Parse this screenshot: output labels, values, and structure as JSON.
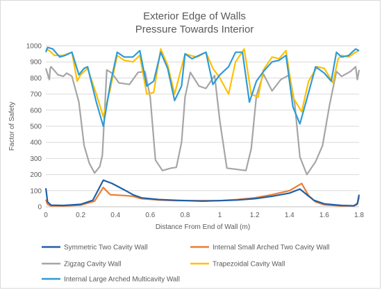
{
  "chart_data": {
    "type": "line",
    "title_lines": [
      "Exterior Edge of Walls",
      "Pressure Towards Interior"
    ],
    "xlabel": "Distance From End of Wall (m)",
    "ylabel": "Factor of Safety",
    "xlim": [
      0,
      1.8
    ],
    "ylim": [
      0,
      1000
    ],
    "x_ticks": [
      0,
      0.2,
      0.4,
      0.6,
      0.8,
      1.0,
      1.2,
      1.4,
      1.6,
      1.8
    ],
    "x_tick_labels": [
      "0",
      "0.2",
      "0.4",
      "0.6",
      "0.8",
      "1",
      "1.2",
      "1.4",
      "1.6",
      "1.8"
    ],
    "y_ticks": [
      0,
      100,
      200,
      300,
      400,
      500,
      600,
      700,
      800,
      900,
      1000
    ],
    "y_tick_labels": [
      "0",
      "100",
      "200",
      "300",
      "400",
      "500",
      "600",
      "700",
      "800",
      "900",
      "1000"
    ],
    "grid": "horizontal",
    "legend_position": "bottom",
    "series": [
      {
        "name": "Symmetric Two Cavity Wall",
        "color": "#1f5fa8",
        "points": [
          [
            0,
            115
          ],
          [
            0.01,
            30
          ],
          [
            0.03,
            10
          ],
          [
            0.1,
            8
          ],
          [
            0.2,
            15
          ],
          [
            0.27,
            40
          ],
          [
            0.33,
            165
          ],
          [
            0.38,
            145
          ],
          [
            0.45,
            105
          ],
          [
            0.5,
            75
          ],
          [
            0.55,
            55
          ],
          [
            0.65,
            45
          ],
          [
            0.75,
            40
          ],
          [
            0.9,
            35
          ],
          [
            1.0,
            38
          ],
          [
            1.1,
            42
          ],
          [
            1.2,
            50
          ],
          [
            1.3,
            65
          ],
          [
            1.4,
            85
          ],
          [
            1.46,
            110
          ],
          [
            1.5,
            75
          ],
          [
            1.54,
            40
          ],
          [
            1.6,
            18
          ],
          [
            1.7,
            8
          ],
          [
            1.77,
            6
          ],
          [
            1.79,
            20
          ],
          [
            1.8,
            75
          ]
        ]
      },
      {
        "name": "Internal Small Arched Two Cavity Wall",
        "color": "#ed7d31",
        "points": [
          [
            0,
            45
          ],
          [
            0.01,
            15
          ],
          [
            0.03,
            5
          ],
          [
            0.1,
            5
          ],
          [
            0.2,
            10
          ],
          [
            0.28,
            35
          ],
          [
            0.33,
            120
          ],
          [
            0.37,
            75
          ],
          [
            0.45,
            70
          ],
          [
            0.5,
            65
          ],
          [
            0.55,
            50
          ],
          [
            0.65,
            42
          ],
          [
            0.75,
            38
          ],
          [
            0.9,
            38
          ],
          [
            1.0,
            38
          ],
          [
            1.1,
            45
          ],
          [
            1.2,
            55
          ],
          [
            1.3,
            75
          ],
          [
            1.4,
            100
          ],
          [
            1.47,
            145
          ],
          [
            1.51,
            70
          ],
          [
            1.55,
            30
          ],
          [
            1.6,
            12
          ],
          [
            1.7,
            5
          ],
          [
            1.77,
            5
          ],
          [
            1.79,
            15
          ],
          [
            1.8,
            60
          ]
        ]
      },
      {
        "name": "Zigzag Cavity Wall",
        "color": "#a5a5a5",
        "points": [
          [
            0,
            860
          ],
          [
            0.02,
            790
          ],
          [
            0.025,
            860
          ],
          [
            0.03,
            870
          ],
          [
            0.07,
            820
          ],
          [
            0.1,
            810
          ],
          [
            0.12,
            830
          ],
          [
            0.15,
            810
          ],
          [
            0.19,
            650
          ],
          [
            0.22,
            380
          ],
          [
            0.25,
            270
          ],
          [
            0.28,
            210
          ],
          [
            0.31,
            250
          ],
          [
            0.325,
            320
          ],
          [
            0.35,
            850
          ],
          [
            0.38,
            830
          ],
          [
            0.42,
            770
          ],
          [
            0.48,
            760
          ],
          [
            0.53,
            835
          ],
          [
            0.57,
            840
          ],
          [
            0.6,
            680
          ],
          [
            0.63,
            290
          ],
          [
            0.67,
            225
          ],
          [
            0.72,
            240
          ],
          [
            0.75,
            245
          ],
          [
            0.78,
            400
          ],
          [
            0.8,
            680
          ],
          [
            0.83,
            835
          ],
          [
            0.88,
            750
          ],
          [
            0.92,
            735
          ],
          [
            0.97,
            815
          ],
          [
            1.0,
            530
          ],
          [
            1.04,
            240
          ],
          [
            1.15,
            225
          ],
          [
            1.18,
            360
          ],
          [
            1.21,
            690
          ],
          [
            1.25,
            825
          ],
          [
            1.3,
            720
          ],
          [
            1.35,
            790
          ],
          [
            1.4,
            820
          ],
          [
            1.43,
            640
          ],
          [
            1.46,
            310
          ],
          [
            1.5,
            200
          ],
          [
            1.55,
            280
          ],
          [
            1.59,
            380
          ],
          [
            1.63,
            630
          ],
          [
            1.67,
            840
          ],
          [
            1.7,
            810
          ],
          [
            1.75,
            840
          ],
          [
            1.78,
            870
          ],
          [
            1.79,
            790
          ],
          [
            1.8,
            850
          ]
        ]
      },
      {
        "name": "Trapezoidal Cavity Wall",
        "color": "#ffc000",
        "points": [
          [
            0,
            980
          ],
          [
            0.02,
            970
          ],
          [
            0.05,
            940
          ],
          [
            0.1,
            940
          ],
          [
            0.15,
            960
          ],
          [
            0.18,
            780
          ],
          [
            0.2,
            820
          ],
          [
            0.24,
            860
          ],
          [
            0.29,
            700
          ],
          [
            0.33,
            560
          ],
          [
            0.37,
            730
          ],
          [
            0.41,
            940
          ],
          [
            0.45,
            910
          ],
          [
            0.5,
            900
          ],
          [
            0.54,
            940
          ],
          [
            0.58,
            700
          ],
          [
            0.62,
            710
          ],
          [
            0.66,
            980
          ],
          [
            0.7,
            880
          ],
          [
            0.74,
            700
          ],
          [
            0.8,
            950
          ],
          [
            0.83,
            940
          ],
          [
            0.87,
            930
          ],
          [
            0.92,
            960
          ],
          [
            0.96,
            860
          ],
          [
            1.0,
            800
          ],
          [
            1.05,
            700
          ],
          [
            1.09,
            900
          ],
          [
            1.14,
            980
          ],
          [
            1.18,
            700
          ],
          [
            1.22,
            680
          ],
          [
            1.25,
            850
          ],
          [
            1.3,
            930
          ],
          [
            1.34,
            920
          ],
          [
            1.38,
            970
          ],
          [
            1.42,
            680
          ],
          [
            1.47,
            590
          ],
          [
            1.51,
            780
          ],
          [
            1.56,
            870
          ],
          [
            1.6,
            860
          ],
          [
            1.65,
            770
          ],
          [
            1.68,
            920
          ],
          [
            1.7,
            940
          ],
          [
            1.74,
            930
          ],
          [
            1.78,
            960
          ],
          [
            1.8,
            970
          ]
        ]
      },
      {
        "name": "Internal Large Arched Multicavity Wall",
        "color": "#2e9bd6",
        "points": [
          [
            0,
            960
          ],
          [
            0.01,
            990
          ],
          [
            0.04,
            980
          ],
          [
            0.08,
            930
          ],
          [
            0.11,
            940
          ],
          [
            0.15,
            960
          ],
          [
            0.19,
            820
          ],
          [
            0.22,
            860
          ],
          [
            0.24,
            870
          ],
          [
            0.29,
            650
          ],
          [
            0.33,
            500
          ],
          [
            0.37,
            760
          ],
          [
            0.41,
            960
          ],
          [
            0.45,
            930
          ],
          [
            0.5,
            930
          ],
          [
            0.54,
            970
          ],
          [
            0.58,
            750
          ],
          [
            0.62,
            780
          ],
          [
            0.66,
            960
          ],
          [
            0.7,
            860
          ],
          [
            0.74,
            660
          ],
          [
            0.78,
            750
          ],
          [
            0.8,
            950
          ],
          [
            0.84,
            920
          ],
          [
            0.88,
            940
          ],
          [
            0.92,
            960
          ],
          [
            0.96,
            760
          ],
          [
            1.0,
            820
          ],
          [
            1.05,
            870
          ],
          [
            1.09,
            960
          ],
          [
            1.13,
            960
          ],
          [
            1.17,
            650
          ],
          [
            1.21,
            780
          ],
          [
            1.25,
            840
          ],
          [
            1.3,
            900
          ],
          [
            1.34,
            910
          ],
          [
            1.38,
            940
          ],
          [
            1.42,
            620
          ],
          [
            1.46,
            515
          ],
          [
            1.5,
            670
          ],
          [
            1.55,
            870
          ],
          [
            1.6,
            830
          ],
          [
            1.64,
            780
          ],
          [
            1.67,
            960
          ],
          [
            1.7,
            930
          ],
          [
            1.74,
            940
          ],
          [
            1.78,
            980
          ],
          [
            1.8,
            970
          ]
        ]
      }
    ]
  }
}
